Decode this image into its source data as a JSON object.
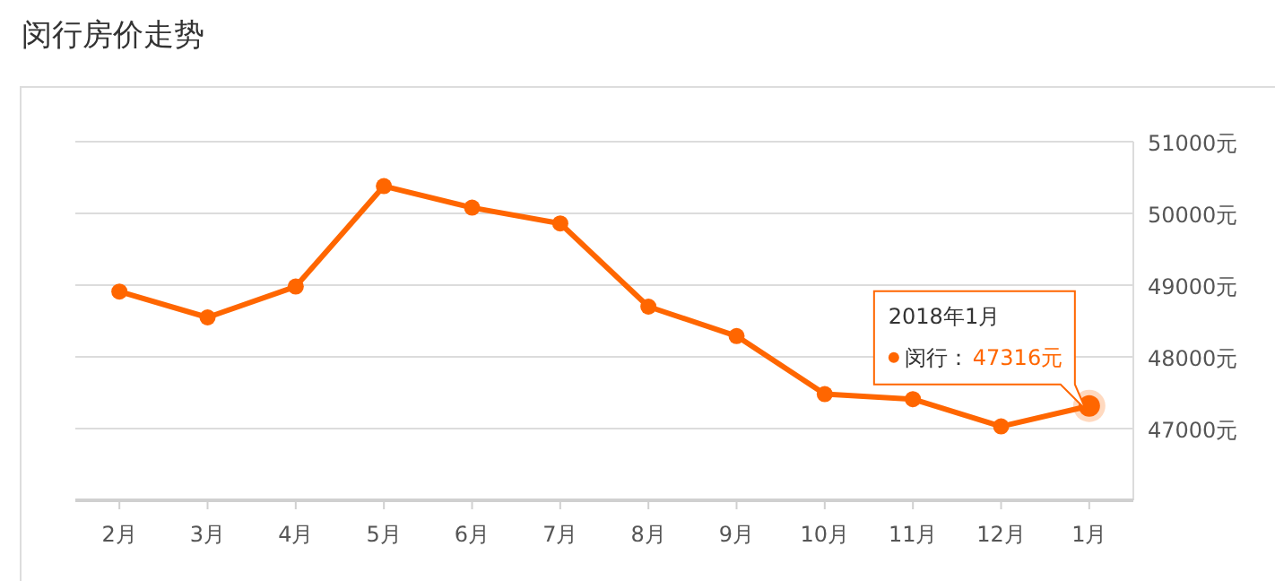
{
  "chart_data": {
    "type": "line",
    "title": "闵行房价走势",
    "categories": [
      "2月",
      "3月",
      "4月",
      "5月",
      "6月",
      "7月",
      "8月",
      "9月",
      "10月",
      "11月",
      "12月",
      "1月"
    ],
    "series": [
      {
        "name": "闵行：",
        "color": "#ff6600",
        "values": [
          48910,
          48550,
          48980,
          50380,
          50080,
          49860,
          48700,
          48290,
          47480,
          47410,
          47030,
          47316
        ],
        "value_labels": [
          null,
          null,
          null,
          null,
          null,
          null,
          null,
          null,
          null,
          null,
          null,
          "47316元"
        ]
      }
    ],
    "annotations": [
      "2018年1月"
    ],
    "ylim": [
      46000,
      51000
    ],
    "yticks": [
      {
        "value": 47000,
        "label": "47000元"
      },
      {
        "value": 48000,
        "label": "48000元"
      },
      {
        "value": 49000,
        "label": "49000元"
      },
      {
        "value": 50000,
        "label": "50000元"
      },
      {
        "value": 51000,
        "label": "51000元"
      }
    ],
    "grid": "y",
    "marker": "circle",
    "line_style": "solid"
  }
}
